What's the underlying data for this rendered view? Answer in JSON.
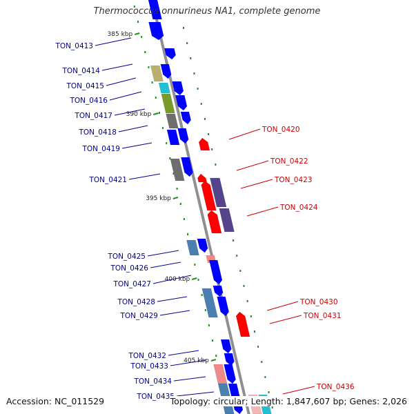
{
  "title": "Thermococcus onnurineus NA1, complete genome",
  "accession": "Accession: NC_011529",
  "stats": "Topology: circular; Length: 1,847,607 bp; Genes: 2,026",
  "ticks": [
    "385 kbp",
    "390 kbp",
    "395 kbp",
    "400 kbp",
    "405 kbp"
  ],
  "colors": {
    "forward_cds": "#0000ff",
    "reverse_cds": "#ff0000",
    "forward_label": "#00008b",
    "reverse_label": "#cc0000",
    "backbone": "#888888",
    "tick": "#228b22"
  },
  "forward_labels": [
    "TON_0413",
    "TON_0414",
    "TON_0415",
    "TON_0416",
    "TON_0417",
    "TON_0418",
    "TON_0419",
    "TON_0421",
    "TON_0425",
    "TON_0426",
    "TON_0427",
    "TON_0428",
    "TON_0429",
    "TON_0432",
    "TON_0433",
    "TON_0434",
    "TON_0435"
  ],
  "reverse_labels": [
    "TON_0420",
    "TON_0422",
    "TON_0423",
    "TON_0424",
    "TON_0430",
    "TON_0431",
    "TON_0436"
  ]
}
